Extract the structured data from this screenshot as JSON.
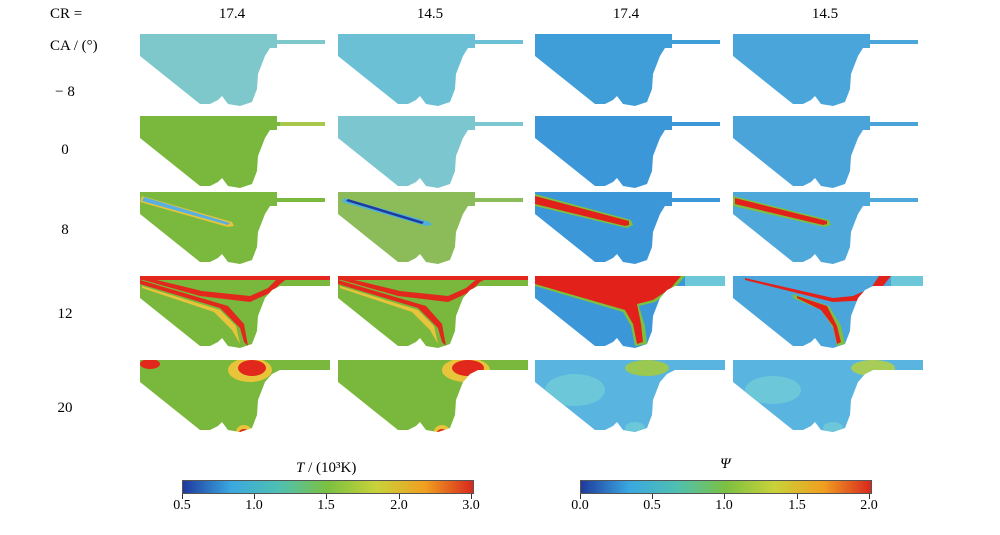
{
  "header": {
    "cr_label": "CR =",
    "ca_label": "CA / (°)",
    "columns": [
      "17.4",
      "14.5",
      "17.4",
      "14.5"
    ]
  },
  "rows": [
    "− 8",
    "0",
    "8",
    "12",
    "20"
  ],
  "colorbars": {
    "temperature": {
      "title": "T",
      "unit": " / (10³K)",
      "ticks": [
        "0.5",
        "1.0",
        "1.5",
        "2.0",
        "3.0"
      ],
      "gradient": [
        "#1e3a9e",
        "#3aa8e0",
        "#4fc0b0",
        "#7cc040",
        "#c8d23a",
        "#f0a020",
        "#d8281e"
      ]
    },
    "psi": {
      "title": "Ψ",
      "ticks": [
        "0.0",
        "0.5",
        "1.0",
        "1.5",
        "2.0"
      ],
      "gradient": [
        "#1e3a9e",
        "#3aa8e0",
        "#4fc0b0",
        "#7cc040",
        "#c8d23a",
        "#f0a020",
        "#d8281e"
      ]
    }
  },
  "colors": {
    "t_cold": "#6cc0c8",
    "t_cool": "#7ec8cc",
    "t_green": "#79b83c",
    "t_greenpale": "#90c064",
    "t_hot": "#e2281c",
    "t_yellow": "#e8c43a",
    "psi_blue": "#3b97d8",
    "psi_light": "#5ab4e0",
    "psi_cyan": "#6cc8d8",
    "psi_red": "#e2221a",
    "psi_deep": "#1d3e9e",
    "psi_green": "#7cc040"
  }
}
